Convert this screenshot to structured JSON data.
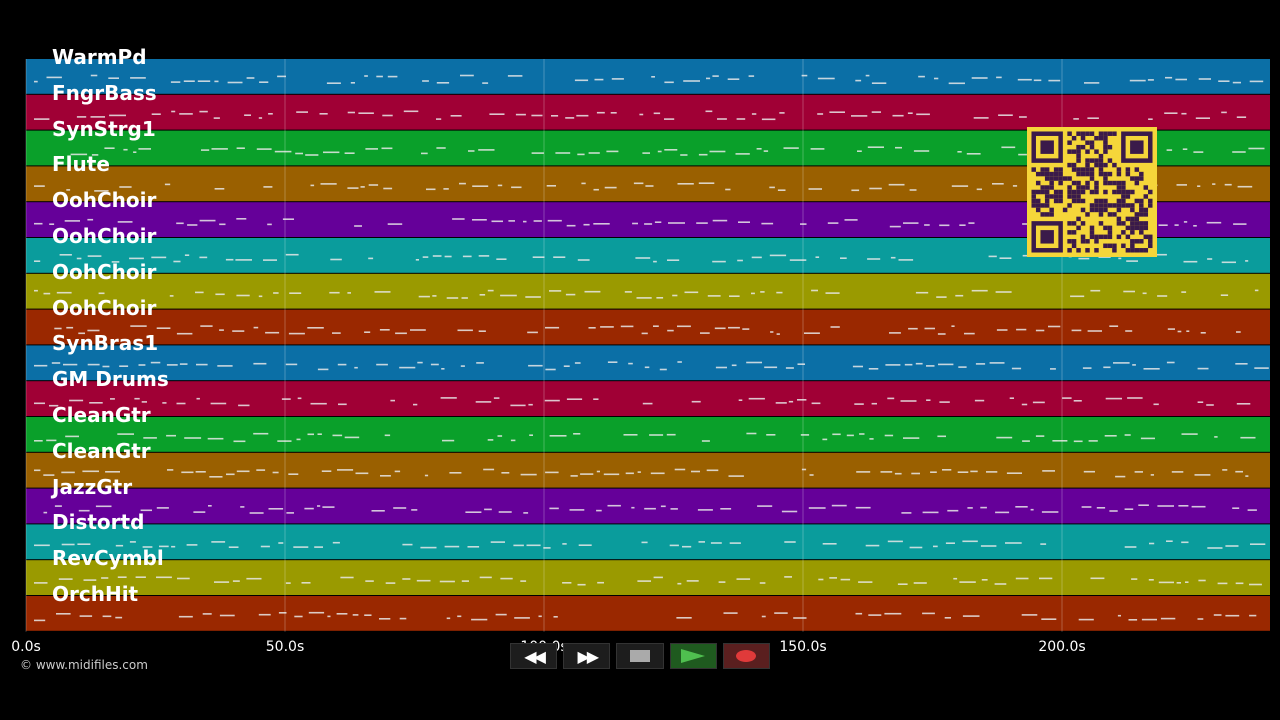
{
  "tracks": [
    {
      "name": "WarmPd",
      "color": "#0b6fa6"
    },
    {
      "name": "FngrBass",
      "color": "#a00035"
    },
    {
      "name": "SynStrg1",
      "color": "#0aa02a"
    },
    {
      "name": "Flute",
      "color": "#9a6000"
    },
    {
      "name": "OohChoir",
      "color": "#650099"
    },
    {
      "name": "OohChoir",
      "color": "#0a9c9c"
    },
    {
      "name": "OohChoir",
      "color": "#9a9a00"
    },
    {
      "name": "OohChoir",
      "color": "#9a2800"
    },
    {
      "name": "SynBras1",
      "color": "#0b6fa6"
    },
    {
      "name": "GM Drums",
      "color": "#a00035"
    },
    {
      "name": "CleanGtr",
      "color": "#0aa02a"
    },
    {
      "name": "CleanGtr",
      "color": "#9a6000"
    },
    {
      "name": "JazzGtr",
      "color": "#650099"
    },
    {
      "name": "Distortd",
      "color": "#0a9c9c"
    },
    {
      "name": "RevCymbl",
      "color": "#9a9a00"
    },
    {
      "name": "OrchHit",
      "color": "#9a2800"
    }
  ],
  "time_axis": {
    "ticks": [
      "0.0s",
      "50.0s",
      "100.0s",
      "150.0s",
      "200.0s"
    ],
    "tick_values": [
      0,
      50,
      100,
      150,
      200
    ],
    "max_seconds": 240
  },
  "copyright": "© www.midifiles.com",
  "transport": {
    "rewind_icon": "rewind-icon",
    "forward_icon": "fast-forward-icon",
    "stop_icon": "stop-icon",
    "play_icon": "play-icon",
    "record_icon": "record-icon"
  },
  "qr_color": "#f5d63a"
}
